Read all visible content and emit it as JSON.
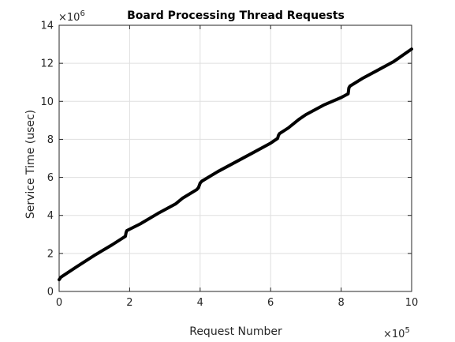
{
  "chart_data": {
    "type": "line",
    "title": "Board Processing Thread Requests",
    "xlabel": "Request Number",
    "ylabel": "Service Time (usec)",
    "x_multiplier": {
      "base": "×10",
      "exponent": "5"
    },
    "y_multiplier": {
      "base": "×10",
      "exponent": "6"
    },
    "xlim": [
      0,
      10
    ],
    "ylim": [
      0,
      14
    ],
    "x_ticks": [
      "0",
      "2",
      "4",
      "6",
      "8",
      "10"
    ],
    "y_ticks": [
      "0",
      "2",
      "4",
      "6",
      "8",
      "10",
      "12",
      "14"
    ],
    "grid": true,
    "series": [
      {
        "color": "#000000",
        "x": [
          0,
          0.05,
          0.5,
          1.0,
          1.5,
          1.88,
          1.9,
          1.92,
          2.3,
          2.8,
          3.3,
          3.5,
          3.9,
          3.95,
          4.0,
          4.05,
          4.5,
          5.0,
          5.5,
          6.0,
          6.2,
          6.22,
          6.25,
          6.5,
          6.8,
          7.0,
          7.5,
          8.0,
          8.2,
          8.22,
          8.25,
          8.6,
          9.0,
          9.5,
          10.0
        ],
        "y": [
          0.62,
          0.75,
          1.3,
          1.9,
          2.45,
          2.9,
          3.1,
          3.2,
          3.55,
          4.1,
          4.6,
          4.9,
          5.35,
          5.45,
          5.7,
          5.8,
          6.3,
          6.8,
          7.3,
          7.8,
          8.05,
          8.2,
          8.3,
          8.6,
          9.05,
          9.3,
          9.8,
          10.2,
          10.4,
          10.7,
          10.8,
          11.2,
          11.6,
          12.1,
          12.75
        ]
      }
    ]
  }
}
